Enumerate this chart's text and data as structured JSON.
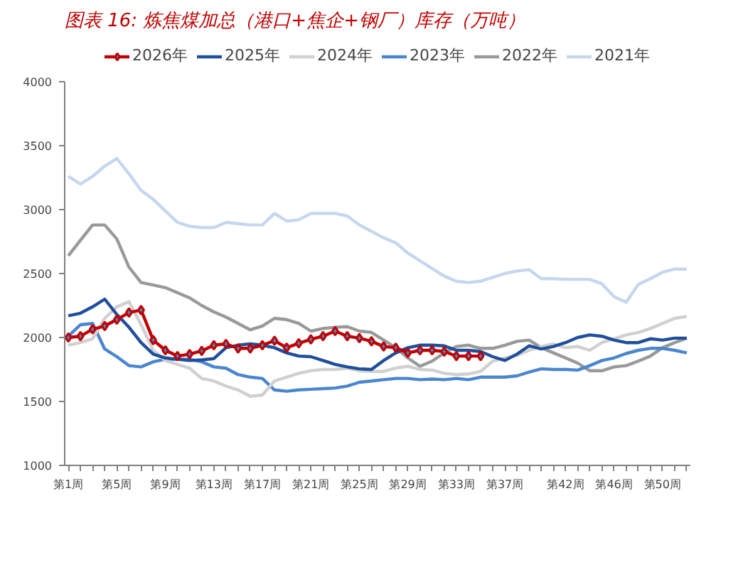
{
  "chart_data": {
    "type": "line",
    "title": "图表 16:  炼焦煤加总（港口+焦企+钢厂）库存（万吨）",
    "categories": [
      "第1周",
      null,
      null,
      null,
      "第5周",
      null,
      null,
      null,
      "第9周",
      null,
      null,
      null,
      "第13周",
      null,
      null,
      null,
      "第17周",
      null,
      null,
      null,
      "第21周",
      null,
      null,
      null,
      "第25周",
      null,
      null,
      null,
      "第29周",
      null,
      null,
      null,
      "第33周",
      null,
      null,
      null,
      "第37周",
      null,
      null,
      null,
      null,
      "第42周",
      null,
      null,
      null,
      "第46周",
      null,
      null,
      null,
      "第50周",
      null,
      null
    ],
    "series": [
      {
        "name": "2026年",
        "color": "#c00000",
        "marker": "diamond",
        "values": [
          2000,
          2010,
          2065,
          2090,
          2140,
          2195,
          2215,
          1980,
          1900,
          1855,
          1870,
          1895,
          1940,
          1950,
          1915,
          1915,
          1940,
          1975,
          1920,
          1955,
          1985,
          2010,
          2050,
          2010,
          1995,
          1970,
          1930,
          1920,
          1880,
          1900,
          1900,
          1890,
          1855,
          1855,
          1855,
          null,
          null,
          null,
          null,
          null,
          null,
          null,
          null,
          null,
          null,
          null,
          null,
          null,
          null,
          null,
          null,
          null
        ]
      },
      {
        "name": "2025年",
        "color": "#1f4e9c",
        "values": [
          2170,
          2190,
          2240,
          2300,
          2180,
          2080,
          1960,
          1870,
          1840,
          1830,
          1820,
          1825,
          1835,
          1920,
          1940,
          1950,
          1940,
          1920,
          1880,
          1855,
          1850,
          1820,
          1790,
          1770,
          1755,
          1750,
          1820,
          1880,
          1920,
          1940,
          1940,
          1935,
          1900,
          1900,
          1890,
          1850,
          1820,
          1870,
          1935,
          1910,
          1930,
          1960,
          2000,
          2020,
          2010,
          1980,
          1960,
          1960,
          1990,
          1980,
          1995,
          1995
        ]
      },
      {
        "name": "2024年",
        "color": "#d0d0d0",
        "values": [
          1940,
          1960,
          1990,
          2150,
          2240,
          2280,
          2100,
          1900,
          1820,
          1790,
          1760,
          1680,
          1660,
          1620,
          1590,
          1540,
          1550,
          1660,
          1690,
          1720,
          1740,
          1750,
          1750,
          1760,
          1740,
          1735,
          1735,
          1760,
          1775,
          1750,
          1745,
          1720,
          1710,
          1715,
          1735,
          1815,
          1840,
          1860,
          1900,
          1930,
          1950,
          1920,
          1930,
          1900,
          1960,
          1990,
          2020,
          2040,
          2070,
          2110,
          2150,
          2165
        ]
      },
      {
        "name": "2023年",
        "color": "#4a86cf",
        "values": [
          2010,
          2100,
          2110,
          1910,
          1850,
          1780,
          1770,
          1810,
          1830,
          1830,
          1830,
          1810,
          1770,
          1760,
          1710,
          1690,
          1680,
          1590,
          1580,
          1590,
          1595,
          1600,
          1605,
          1620,
          1650,
          1660,
          1670,
          1680,
          1680,
          1670,
          1675,
          1670,
          1680,
          1670,
          1690,
          1690,
          1690,
          1700,
          1730,
          1755,
          1750,
          1750,
          1745,
          1780,
          1820,
          1840,
          1875,
          1900,
          1915,
          1915,
          1900,
          1880
        ]
      },
      {
        "name": "2022年",
        "color": "#999999",
        "values": [
          2640,
          2760,
          2880,
          2880,
          2770,
          2550,
          2430,
          2410,
          2390,
          2350,
          2310,
          2250,
          2200,
          2160,
          2110,
          2060,
          2090,
          2150,
          2140,
          2110,
          2050,
          2070,
          2080,
          2085,
          2050,
          2040,
          1980,
          1920,
          1840,
          1775,
          1815,
          1880,
          1930,
          1940,
          1915,
          1915,
          1940,
          1970,
          1980,
          1920,
          1880,
          1840,
          1800,
          1740,
          1740,
          1770,
          1780,
          1815,
          1855,
          1920,
          1960,
          1995
        ]
      },
      {
        "name": "2021年",
        "color": "#c5d7ee",
        "values": [
          3260,
          3200,
          3260,
          3340,
          3400,
          3280,
          3150,
          3080,
          2990,
          2900,
          2870,
          2860,
          2860,
          2900,
          2890,
          2880,
          2880,
          2970,
          2910,
          2920,
          2970,
          2970,
          2970,
          2950,
          2880,
          2830,
          2780,
          2740,
          2660,
          2600,
          2540,
          2480,
          2440,
          2430,
          2440,
          2470,
          2500,
          2520,
          2530,
          2460,
          2460,
          2455,
          2455,
          2455,
          2420,
          2320,
          2275,
          2415,
          2460,
          2510,
          2535,
          2535
        ]
      }
    ],
    "ylim": [
      1000,
      4000
    ],
    "yticks": [
      1000,
      1500,
      2000,
      2500,
      3000,
      3500,
      4000
    ],
    "grid": false,
    "legend": "top",
    "marker": "none",
    "line_style": "solid"
  }
}
